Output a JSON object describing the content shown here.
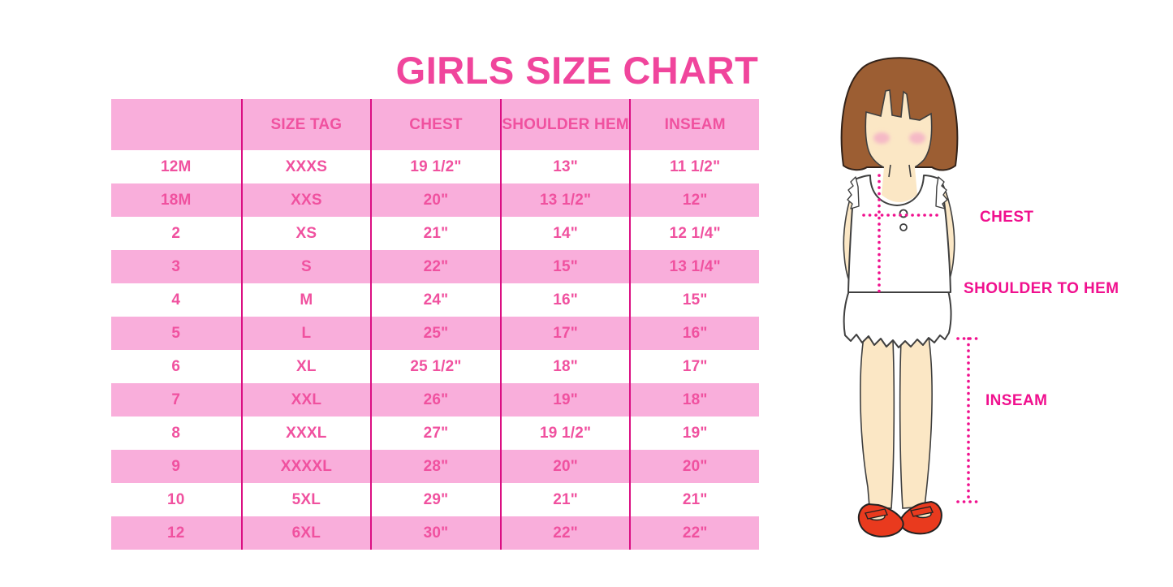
{
  "title": "GIRLS SIZE CHART",
  "chart_data": {
    "type": "table",
    "title": "GIRLS SIZE CHART",
    "columns": [
      "",
      "SIZE TAG",
      "CHEST",
      "SHOULDER HEM",
      "INSEAM"
    ],
    "rows": [
      [
        "12M",
        "XXXS",
        "19 1/2\"",
        "13\"",
        "11 1/2\""
      ],
      [
        "18M",
        "XXS",
        "20\"",
        "13 1/2\"",
        "12\""
      ],
      [
        "2",
        "XS",
        "21\"",
        "14\"",
        "12 1/4\""
      ],
      [
        "3",
        "S",
        "22\"",
        "15\"",
        "13 1/4\""
      ],
      [
        "4",
        "M",
        "24\"",
        "16\"",
        "15\""
      ],
      [
        "5",
        "L",
        "25\"",
        "17\"",
        "16\""
      ],
      [
        "6",
        "XL",
        "25 1/2\"",
        "18\"",
        "17\""
      ],
      [
        "7",
        "XXL",
        "26\"",
        "19\"",
        "18\""
      ],
      [
        "8",
        "XXXL",
        "27\"",
        "19 1/2\"",
        "19\""
      ],
      [
        "9",
        "XXXXL",
        "28\"",
        "20\"",
        "20\""
      ],
      [
        "10",
        "5XL",
        "29\"",
        "21\"",
        "21\""
      ],
      [
        "12",
        "6XL",
        "30\"",
        "22\"",
        "22\""
      ]
    ],
    "layout_hints": {
      "row_striping": "header and every second data row light pink, others white",
      "column_dividers": "vertical magenta lines between all columns"
    }
  },
  "figure": {
    "description": "illustrated girl with measurement guides",
    "labels": {
      "chest": "CHEST",
      "shoulder_to_hem": "SHOULDER TO HEM",
      "inseam": "INSEAM"
    }
  },
  "colors": {
    "title_pink": "#F0459C",
    "row_pink": "#F9AEDB",
    "divider_magenta": "#DB0F82",
    "cell_text_pink": "#F0519F",
    "annotation_magenta": "#F0108E",
    "hair_brown": "#9C5E33",
    "skin": "#FBE7C5",
    "blush": "#F5B9C6",
    "shoe_red": "#E93A1E",
    "outline": "#3F3F3F"
  }
}
